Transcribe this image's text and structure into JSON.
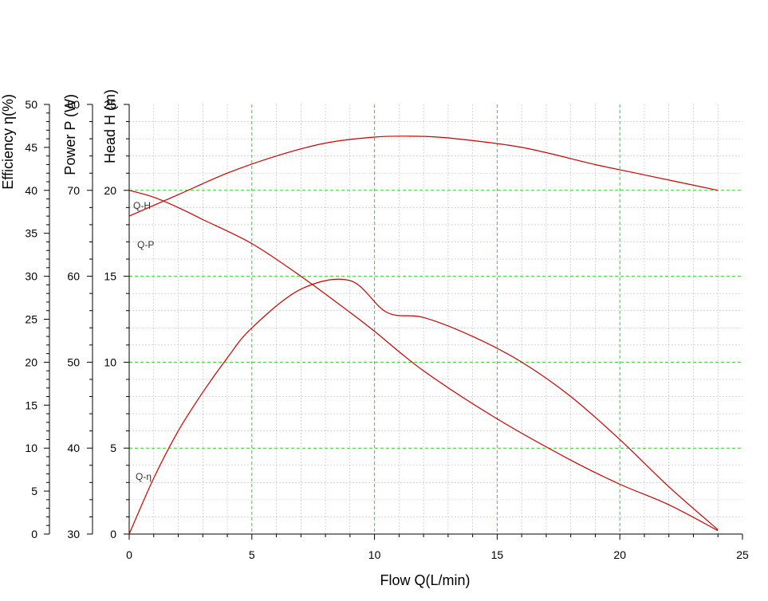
{
  "chart_data": {
    "type": "line",
    "xlabel": "Flow Q(L/min)",
    "xlim": [
      0,
      25
    ],
    "x_ticks": [
      0,
      5,
      10,
      15,
      20,
      25
    ],
    "grid": true,
    "axes": {
      "efficiency": {
        "label": "Efficiency η(%)",
        "range": [
          0,
          50
        ],
        "ticks": [
          0,
          5,
          10,
          15,
          20,
          25,
          30,
          35,
          40,
          45,
          50
        ]
      },
      "power": {
        "label": "Power P (W)",
        "range": [
          30,
          80
        ],
        "ticks": [
          30,
          40,
          50,
          60,
          70,
          80
        ]
      },
      "head": {
        "label": "Head H (m)",
        "range": [
          0,
          25
        ],
        "ticks": [
          0,
          5,
          10,
          15,
          20,
          25
        ]
      }
    },
    "colors": {
      "curve": "#cc0000",
      "major_grid": "#33cc33",
      "minor_grid": "#bbbbbb"
    },
    "series": [
      {
        "name": "Q-H",
        "axis": "power",
        "x": [
          0,
          2,
          4,
          6,
          8,
          10,
          11.5,
          13,
          16,
          19,
          21,
          24
        ],
        "y": [
          67,
          69.5,
          72,
          74,
          75.5,
          76.2,
          76.3,
          76.1,
          75,
          73,
          71.8,
          70
        ]
      },
      {
        "name": "Q-P",
        "axis": "head",
        "x": [
          0,
          1,
          2,
          3,
          5,
          7,
          9,
          10,
          12,
          15,
          18,
          20,
          22,
          24
        ],
        "y": [
          20,
          19.6,
          19,
          18.3,
          16.9,
          15,
          12.9,
          11.8,
          9.5,
          6.7,
          4.3,
          2.9,
          1.7,
          0.2
        ]
      },
      {
        "name": "Q-η",
        "axis": "efficiency",
        "x": [
          0,
          1,
          2,
          3,
          4,
          5,
          7,
          9,
          10.5,
          12,
          14,
          16,
          18,
          20,
          22,
          24
        ],
        "y": [
          0,
          6.5,
          12,
          16.5,
          20.5,
          24,
          28.5,
          29.5,
          25.8,
          25.2,
          23,
          20,
          16,
          11,
          5.5,
          0.5
        ]
      }
    ]
  }
}
